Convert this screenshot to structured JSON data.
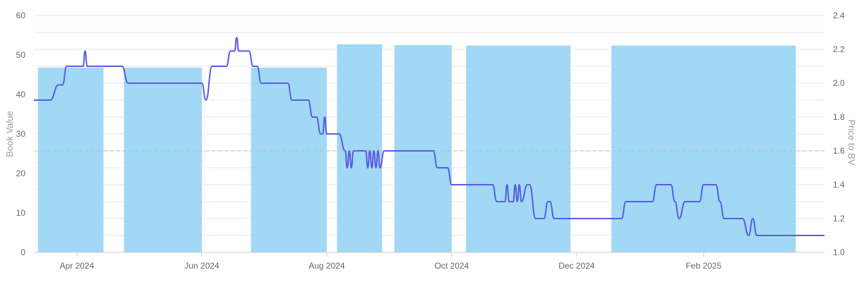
{
  "chart_data": {
    "type": "bar+line",
    "title": "",
    "left_axis": {
      "label": "Book Value",
      "range": [
        0,
        60
      ],
      "ticks": [
        "0",
        "10",
        "20",
        "30",
        "40",
        "50",
        "60"
      ]
    },
    "right_axis": {
      "label": "Price to BV",
      "range": [
        1.0,
        2.4
      ],
      "ticks": [
        "1.0",
        "1.2",
        "1.4",
        "1.6",
        "1.8",
        "2.0",
        "2.2",
        "2.4"
      ]
    },
    "x_axis": {
      "ticks": [
        "Apr 2024",
        "Jun 2024",
        "Aug 2024",
        "Oct 2024",
        "Dec 2024",
        "Feb 2025"
      ]
    },
    "grid": true,
    "reference_line": {
      "axis": "right",
      "value": 1.6,
      "style": "dashed"
    },
    "bars": {
      "axis": "left",
      "color": "#a0d8f5",
      "series": [
        {
          "start": "2024-03-13",
          "end": "2024-04-14",
          "value": 46.8
        },
        {
          "start": "2024-04-24",
          "end": "2024-06-01",
          "value": 46.8
        },
        {
          "start": "2024-06-25",
          "end": "2024-08-01",
          "value": 46.8
        },
        {
          "start": "2024-08-06",
          "end": "2024-08-28",
          "value": 52.7
        },
        {
          "start": "2024-09-03",
          "end": "2024-10-01",
          "value": 52.5
        },
        {
          "start": "2024-10-08",
          "end": "2024-11-28",
          "value": 52.4
        },
        {
          "start": "2024-12-18",
          "end": "2025-03-18",
          "value": 52.4
        }
      ]
    },
    "line": {
      "axis": "right",
      "color": "#5b5ce0",
      "points": [
        [
          "2024-03-11",
          1.9
        ],
        [
          "2024-03-19",
          1.9
        ],
        [
          "2024-03-23",
          1.99
        ],
        [
          "2024-03-25",
          1.99
        ],
        [
          "2024-03-27",
          2.1
        ],
        [
          "2024-03-31",
          2.1
        ],
        [
          "2024-04-04",
          2.1
        ],
        [
          "2024-04-05",
          2.19
        ],
        [
          "2024-04-06",
          2.1
        ],
        [
          "2024-04-20",
          2.1
        ],
        [
          "2024-04-23",
          2.1
        ],
        [
          "2024-04-26",
          2.0
        ],
        [
          "2024-05-01",
          2.0
        ],
        [
          "2024-06-01",
          2.0
        ],
        [
          "2024-06-03",
          1.9
        ],
        [
          "2024-06-06",
          2.1
        ],
        [
          "2024-06-13",
          2.1
        ],
        [
          "2024-06-15",
          2.19
        ],
        [
          "2024-06-17",
          2.19
        ],
        [
          "2024-06-18",
          2.27
        ],
        [
          "2024-06-19",
          2.19
        ],
        [
          "2024-06-24",
          2.19
        ],
        [
          "2024-06-26",
          2.1
        ],
        [
          "2024-06-28",
          2.1
        ],
        [
          "2024-06-30",
          2.0
        ],
        [
          "2024-07-13",
          2.0
        ],
        [
          "2024-07-15",
          1.9
        ],
        [
          "2024-07-23",
          1.9
        ],
        [
          "2024-07-25",
          1.8
        ],
        [
          "2024-07-27",
          1.8
        ],
        [
          "2024-07-29",
          1.7
        ],
        [
          "2024-07-30",
          1.7
        ],
        [
          "2024-07-31",
          1.8
        ],
        [
          "2024-08-01",
          1.7
        ],
        [
          "2024-08-07",
          1.7
        ],
        [
          "2024-08-10",
          1.6
        ],
        [
          "2024-08-11",
          1.5
        ],
        [
          "2024-08-12",
          1.6
        ],
        [
          "2024-08-13",
          1.5
        ],
        [
          "2024-08-14",
          1.6
        ],
        [
          "2024-08-20",
          1.6
        ],
        [
          "2024-08-21",
          1.5
        ],
        [
          "2024-08-22",
          1.6
        ],
        [
          "2024-08-23",
          1.5
        ],
        [
          "2024-08-24",
          1.6
        ],
        [
          "2024-08-25",
          1.5
        ],
        [
          "2024-08-26",
          1.6
        ],
        [
          "2024-08-27",
          1.5
        ],
        [
          "2024-08-29",
          1.6
        ],
        [
          "2024-09-22",
          1.6
        ],
        [
          "2024-09-24",
          1.5
        ],
        [
          "2024-09-29",
          1.5
        ],
        [
          "2024-10-01",
          1.4
        ],
        [
          "2024-10-21",
          1.4
        ],
        [
          "2024-10-23",
          1.3
        ],
        [
          "2024-10-27",
          1.3
        ],
        [
          "2024-10-28",
          1.4
        ],
        [
          "2024-10-29",
          1.3
        ],
        [
          "2024-10-31",
          1.3
        ],
        [
          "2024-11-01",
          1.4
        ],
        [
          "2024-11-02",
          1.3
        ],
        [
          "2024-11-03",
          1.4
        ],
        [
          "2024-11-04",
          1.3
        ],
        [
          "2024-11-07",
          1.4
        ],
        [
          "2024-11-08",
          1.4
        ],
        [
          "2024-11-11",
          1.2
        ],
        [
          "2024-11-15",
          1.2
        ],
        [
          "2024-11-17",
          1.3
        ],
        [
          "2024-11-18",
          1.3
        ],
        [
          "2024-11-20",
          1.2
        ],
        [
          "2024-12-23",
          1.2
        ],
        [
          "2024-12-25",
          1.3
        ],
        [
          "2025-01-07",
          1.3
        ],
        [
          "2025-01-09",
          1.4
        ],
        [
          "2025-01-16",
          1.4
        ],
        [
          "2025-01-18",
          1.3
        ],
        [
          "2025-01-20",
          1.2
        ],
        [
          "2025-01-23",
          1.3
        ],
        [
          "2025-01-30",
          1.3
        ],
        [
          "2025-02-01",
          1.4
        ],
        [
          "2025-02-07",
          1.4
        ],
        [
          "2025-02-09",
          1.3
        ],
        [
          "2025-02-11",
          1.2
        ],
        [
          "2025-02-20",
          1.2
        ],
        [
          "2025-02-23",
          1.1
        ],
        [
          "2025-02-25",
          1.2
        ],
        [
          "2025-02-27",
          1.1
        ],
        [
          "2025-04-01",
          1.1
        ]
      ]
    }
  }
}
